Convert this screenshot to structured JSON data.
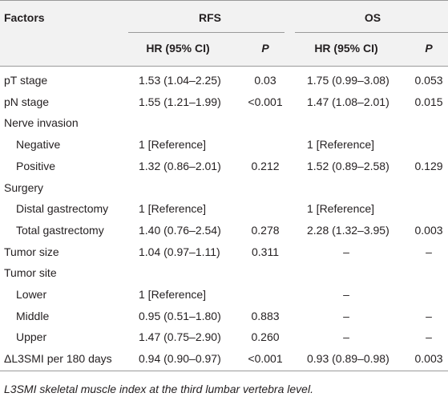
{
  "header": {
    "factors": "Factors",
    "rfs": "RFS",
    "os": "OS"
  },
  "subheader": [
    "HR (95% CI)",
    "P",
    "HR (95% CI)",
    "P"
  ],
  "table": {
    "rows": [
      [
        "pT stage",
        "1.53 (1.04–2.25)",
        "0.03",
        "1.75 (0.99–3.08)",
        "0.053"
      ],
      [
        "pN stage",
        "1.55 (1.21–1.99)",
        "<0.001",
        "1.47 (1.08–2.01)",
        "0.015"
      ],
      [
        "Nerve invasion",
        null,
        null,
        null,
        null
      ],
      [
        "Negative",
        "1 [Reference]",
        null,
        "1 [Reference]",
        null
      ],
      [
        "Positive",
        "1.32 (0.86–2.01)",
        "0.212",
        "1.52 (0.89–2.58)",
        "0.129"
      ],
      [
        "Surgery",
        null,
        null,
        null,
        null
      ],
      [
        "Distal gastrectomy",
        "1 [Reference]",
        null,
        "1 [Reference]",
        null
      ],
      [
        "Total gastrectomy",
        "1.40 (0.76–2.54)",
        "0.278",
        "2.28 (1.32–3.95)",
        "0.003"
      ],
      [
        "Tumor size",
        "1.04 (0.97–1.11)",
        "0.311",
        "–",
        "–"
      ],
      [
        "Tumor site",
        null,
        null,
        null,
        null
      ],
      [
        "Lower",
        "1 [Reference]",
        null,
        "–",
        null
      ],
      [
        "Middle",
        "0.95 (0.51–1.80)",
        "0.883",
        "–",
        "–"
      ],
      [
        "Upper",
        "1.47 (0.75–2.90)",
        "0.260",
        "–",
        "–"
      ],
      [
        "ΔL3SMI per 180 days",
        "0.94 (0.90–0.97)",
        "<0.001",
        "0.93 (0.89–0.98)",
        "0.003"
      ]
    ]
  },
  "footnote": "L3SMI skeletal muscle index at the third lumbar vertebra level."
}
